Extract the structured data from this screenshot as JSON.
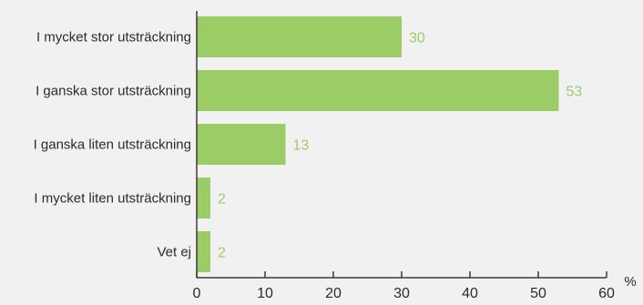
{
  "colors": {
    "background": "#f1f1f1",
    "bar": "#9ccc65",
    "data_label": "#9ccc65",
    "axis": "#3a3a3a",
    "text": "#2b2b2b"
  },
  "chart_data": {
    "type": "bar",
    "orientation": "horizontal",
    "categories": [
      "I mycket stor utsträckning",
      "I ganska stor utsträckning",
      "I ganska liten utsträckning",
      "I mycket liten utsträckning",
      "Vet ej"
    ],
    "values": [
      30,
      53,
      13,
      2,
      2
    ],
    "data_labels": [
      "30",
      "53",
      "13",
      "2",
      "2"
    ],
    "xlim": [
      0,
      60
    ],
    "xticks": [
      0,
      10,
      20,
      30,
      40,
      50,
      60
    ],
    "xtick_labels": [
      "0",
      "10",
      "20",
      "30",
      "40",
      "50",
      "60"
    ],
    "unit_label": "%",
    "grid": false
  }
}
